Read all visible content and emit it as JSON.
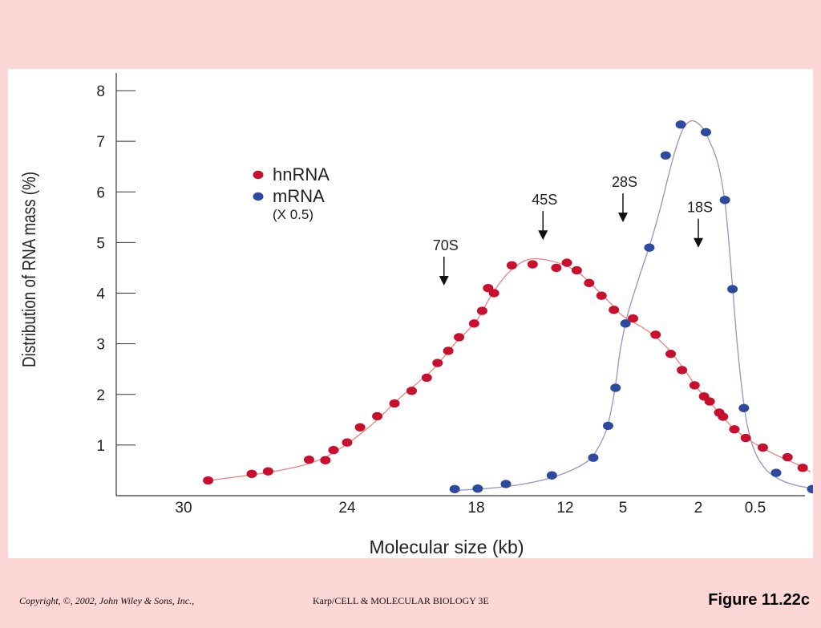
{
  "chart_data": {
    "type": "scatter",
    "xlabel": "Molecular size (kb)",
    "ylabel": "Distribution of RNA mass (%)",
    "x_ticks": [
      "30",
      "24",
      "18",
      "12",
      "5",
      "2",
      "0.5"
    ],
    "y_ticks": [
      "1",
      "2",
      "3",
      "4",
      "5",
      "6",
      "7",
      "8"
    ],
    "ylim": [
      0,
      8
    ],
    "legend": {
      "placement": "top-left",
      "entries": [
        {
          "label": "hnRNA",
          "note": "",
          "color": "#c8102e"
        },
        {
          "label": "mRNA",
          "note": "(X 0.5)",
          "color": "#2e4a9e"
        }
      ]
    },
    "annotations": [
      {
        "label": "70S",
        "x": 19.5,
        "y": 4.15
      },
      {
        "label": "45S",
        "x": 13.5,
        "y": 5.05
      },
      {
        "label": "28S",
        "x": 5.0,
        "y": 5.4
      },
      {
        "label": "18S",
        "x": 2.0,
        "y": 4.9
      }
    ],
    "series": [
      {
        "name": "hnRNA",
        "color": "#c8102e",
        "curve_color": "#e88a8a",
        "points": [
          [
            29.1,
            0.3
          ],
          [
            27.5,
            0.43
          ],
          [
            26.9,
            0.48
          ],
          [
            25.4,
            0.71
          ],
          [
            24.8,
            0.7
          ],
          [
            24.5,
            0.9
          ],
          [
            24.0,
            1.05
          ],
          [
            23.4,
            1.35
          ],
          [
            22.6,
            1.57
          ],
          [
            21.8,
            1.82
          ],
          [
            21.0,
            2.07
          ],
          [
            20.3,
            2.33
          ],
          [
            19.8,
            2.62
          ],
          [
            19.3,
            2.86
          ],
          [
            18.8,
            3.13
          ],
          [
            18.1,
            3.4
          ],
          [
            17.6,
            3.65
          ],
          [
            17.2,
            4.1
          ],
          [
            16.8,
            4.0
          ],
          [
            15.6,
            4.55
          ],
          [
            14.2,
            4.57
          ],
          [
            12.6,
            4.5
          ],
          [
            11.8,
            4.6
          ],
          [
            10.6,
            4.45
          ],
          [
            9.1,
            4.2
          ],
          [
            7.6,
            3.95
          ],
          [
            6.1,
            3.67
          ],
          [
            4.6,
            3.5
          ],
          [
            3.7,
            3.18
          ],
          [
            3.1,
            2.8
          ],
          [
            2.65,
            2.48
          ],
          [
            2.15,
            2.18
          ],
          [
            1.85,
            1.96
          ],
          [
            1.7,
            1.86
          ],
          [
            1.45,
            1.64
          ],
          [
            1.35,
            1.56
          ],
          [
            1.05,
            1.31
          ],
          [
            0.75,
            1.14
          ],
          [
            0.3,
            0.95
          ],
          [
            -0.35,
            0.76
          ],
          [
            -0.75,
            0.55
          ]
        ],
        "curve": [
          [
            29.1,
            0.3
          ],
          [
            27.0,
            0.45
          ],
          [
            25.5,
            0.62
          ],
          [
            24.5,
            0.85
          ],
          [
            23.0,
            1.35
          ],
          [
            21.5,
            1.95
          ],
          [
            20.0,
            2.5
          ],
          [
            19.0,
            3.0
          ],
          [
            18.0,
            3.45
          ],
          [
            17.0,
            3.95
          ],
          [
            16.0,
            4.35
          ],
          [
            15.0,
            4.6
          ],
          [
            14.0,
            4.68
          ],
          [
            12.5,
            4.6
          ],
          [
            10.5,
            4.42
          ],
          [
            8.5,
            4.12
          ],
          [
            6.5,
            3.8
          ],
          [
            5.0,
            3.55
          ],
          [
            4.0,
            3.25
          ],
          [
            3.2,
            2.9
          ],
          [
            2.5,
            2.45
          ],
          [
            2.0,
            2.1
          ],
          [
            1.5,
            1.68
          ],
          [
            1.1,
            1.35
          ],
          [
            0.6,
            1.07
          ],
          [
            0.0,
            0.82
          ],
          [
            -0.6,
            0.62
          ],
          [
            -0.95,
            0.47
          ]
        ]
      },
      {
        "name": "mRNA",
        "color": "#2e4a9e",
        "curve_color": "#9a9ac8",
        "points": [
          [
            19.0,
            0.13
          ],
          [
            17.9,
            0.14
          ],
          [
            16.0,
            0.23
          ],
          [
            12.9,
            0.4
          ],
          [
            8.6,
            0.75
          ],
          [
            6.8,
            1.38
          ],
          [
            5.9,
            2.13
          ],
          [
            4.9,
            3.4
          ],
          [
            3.95,
            4.9
          ],
          [
            3.3,
            6.72
          ],
          [
            2.7,
            7.33
          ],
          [
            1.8,
            7.18
          ],
          [
            1.3,
            5.84
          ],
          [
            1.1,
            4.08
          ],
          [
            0.8,
            1.73
          ],
          [
            -0.05,
            0.45
          ],
          [
            -1.0,
            0.13
          ]
        ],
        "curve": [
          [
            19.0,
            0.1
          ],
          [
            17.0,
            0.15
          ],
          [
            15.0,
            0.22
          ],
          [
            13.0,
            0.35
          ],
          [
            11.0,
            0.52
          ],
          [
            9.0,
            0.72
          ],
          [
            8.0,
            0.95
          ],
          [
            7.0,
            1.3
          ],
          [
            6.3,
            1.8
          ],
          [
            5.8,
            2.3
          ],
          [
            5.3,
            2.9
          ],
          [
            4.8,
            3.6
          ],
          [
            4.3,
            4.4
          ],
          [
            3.9,
            5.0
          ],
          [
            3.5,
            5.7
          ],
          [
            3.2,
            6.3
          ],
          [
            2.9,
            6.85
          ],
          [
            2.6,
            7.25
          ],
          [
            2.3,
            7.4
          ],
          [
            2.0,
            7.35
          ],
          [
            1.8,
            7.15
          ],
          [
            1.5,
            6.6
          ],
          [
            1.3,
            5.8
          ],
          [
            1.15,
            4.6
          ],
          [
            1.0,
            3.2
          ],
          [
            0.85,
            2.1
          ],
          [
            0.7,
            1.35
          ],
          [
            0.5,
            0.85
          ],
          [
            0.2,
            0.5
          ],
          [
            -0.2,
            0.3
          ],
          [
            -0.6,
            0.2
          ],
          [
            -1.1,
            0.13
          ]
        ]
      }
    ]
  },
  "footer": {
    "copyright": "Copyright, ©, 2002, John Wiley & Sons, Inc.,",
    "book": "Karp/CELL & MOLECULAR BIOLOGY 3E",
    "figure": "Figure 11.22c"
  }
}
